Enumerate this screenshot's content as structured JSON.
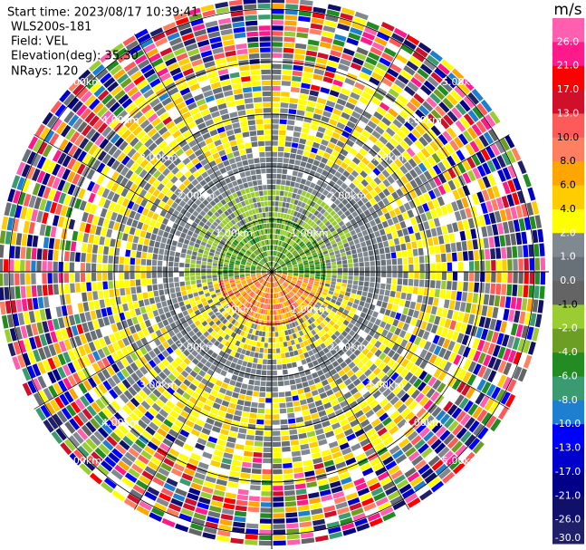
{
  "header": {
    "start_time": "Start time: 2023/08/17 10:39:41",
    "instrument": "WLS200s-181",
    "field": "Field: VEL",
    "elevation": "Elevation(deg): 35.30",
    "nrays": "NRays: 120"
  },
  "range_rings": [
    "1.00km",
    "2.00km",
    "3.00km",
    "4.00km",
    "5.00km"
  ],
  "colorbar": {
    "unit": "m/s",
    "ticks": [
      "26.0",
      "21.0",
      "17.0",
      "13.0",
      "10.0",
      "8.0",
      "6.0",
      "4.0",
      "2.0",
      "1.0",
      "0.0",
      "-1.0",
      "-2.0",
      "-4.0",
      "-6.0",
      "-8.0",
      "-10.0",
      "-13.0",
      "-17.0",
      "-21.0",
      "-26.0",
      "-30.0"
    ],
    "colors": [
      "#ff5fae",
      "#ff1a8c",
      "#ff0000",
      "#d0102a",
      "#ff5a5a",
      "#ff8060",
      "#ffa500",
      "#ffcc00",
      "#ffff00",
      "#808890",
      "#687078",
      "#646464",
      "#9acd32",
      "#6b9e23",
      "#228b22",
      "#3a9a70",
      "#1e7fd0",
      "#0000ff",
      "#0000cd",
      "#000088",
      "#10106a",
      "#20206a"
    ]
  }
}
